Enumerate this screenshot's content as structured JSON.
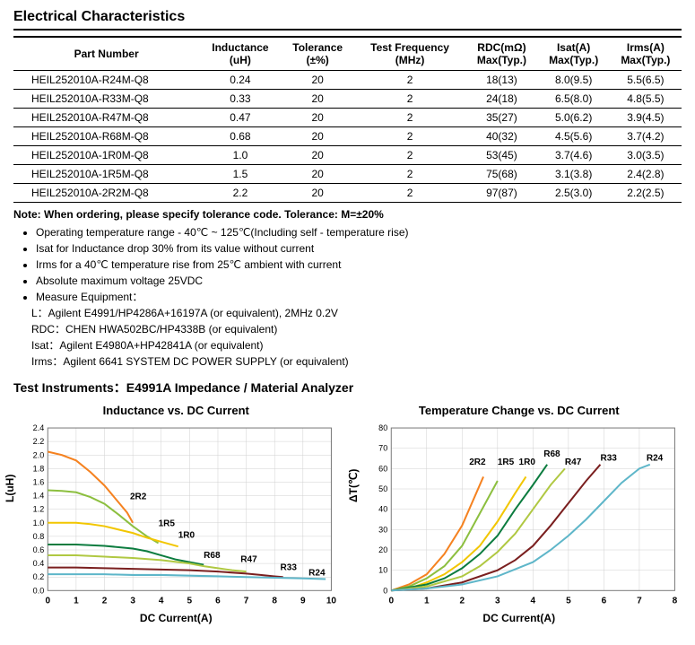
{
  "title": "Electrical Characteristics",
  "columns": [
    "Part Number",
    "Inductance (uH)",
    "Tolerance (±%)",
    "Test Frequency (MHz)",
    "RDC(mΩ) Max(Typ.)",
    "Isat(A) Max(Typ.)",
    "Irms(A) Max(Typ.)"
  ],
  "rows": [
    [
      "HEIL252010A-R24M-Q8",
      "0.24",
      "20",
      "2",
      "18(13)",
      "8.0(9.5)",
      "5.5(6.5)"
    ],
    [
      "HEIL252010A-R33M-Q8",
      "0.33",
      "20",
      "2",
      "24(18)",
      "6.5(8.0)",
      "4.8(5.5)"
    ],
    [
      "HEIL252010A-R47M-Q8",
      "0.47",
      "20",
      "2",
      "35(27)",
      "5.0(6.2)",
      "3.9(4.5)"
    ],
    [
      "HEIL252010A-R68M-Q8",
      "0.68",
      "20",
      "2",
      "40(32)",
      "4.5(5.6)",
      "3.7(4.2)"
    ],
    [
      "HEIL252010A-1R0M-Q8",
      "1.0",
      "20",
      "2",
      "53(45)",
      "3.7(4.6)",
      "3.0(3.5)"
    ],
    [
      "HEIL252010A-1R5M-Q8",
      "1.5",
      "20",
      "2",
      "75(68)",
      "3.1(3.8)",
      "2.4(2.8)"
    ],
    [
      "HEIL252010A-2R2M-Q8",
      "2.2",
      "20",
      "2",
      "97(87)",
      "2.5(3.0)",
      "2.2(2.5)"
    ]
  ],
  "note_line": "Note: When ordering, please specify tolerance code. Tolerance: M=±20%",
  "bullets": [
    "Operating temperature range - 40℃ ~ 125℃(Including self - temperature rise)",
    "Isat for Inductance drop 30% from its value without current",
    "Irms for a 40℃ temperature rise from 25℃ ambient with current",
    "Absolute maximum voltage 25VDC",
    "Measure Equipment："
  ],
  "equipment": [
    "L：Agilent E4991/HP4286A+16197A (or equivalent), 2MHz 0.2V",
    "RDC：CHEN HWA502BC/HP4338B (or equivalent)",
    "Isat：Agilent E4980A+HP42841A (or equivalent)",
    "Irms：Agilent 6641 SYSTEM DC POWER SUPPLY (or equivalent)"
  ],
  "subtitle": "Test Instruments：E4991A Impedance / Material Analyzer",
  "chart1": {
    "title": "Inductance vs. DC Current",
    "xlabel": "DC Current(A)",
    "ylabel": "L(uH)",
    "xlim": [
      0,
      10
    ],
    "ylim": [
      0,
      2.4
    ],
    "xtick_step": 1,
    "ytick_step": 0.2,
    "grid_color": "#d0d0d0",
    "axis_color": "#7a7a7a",
    "line_width": 2,
    "series": [
      {
        "label": "2R2",
        "color": "#f58220",
        "pts": [
          [
            0,
            2.05
          ],
          [
            0.5,
            2.0
          ],
          [
            1,
            1.92
          ],
          [
            1.5,
            1.75
          ],
          [
            2,
            1.55
          ],
          [
            2.5,
            1.3
          ],
          [
            2.8,
            1.15
          ],
          [
            3.0,
            1.0
          ]
        ],
        "lx": 2.9,
        "ly": 1.35
      },
      {
        "label": "1R5",
        "color": "#8cbf3f",
        "pts": [
          [
            0,
            1.48
          ],
          [
            0.5,
            1.47
          ],
          [
            1,
            1.45
          ],
          [
            1.5,
            1.38
          ],
          [
            2,
            1.28
          ],
          [
            2.5,
            1.12
          ],
          [
            3,
            0.95
          ],
          [
            3.5,
            0.8
          ],
          [
            3.9,
            0.7
          ]
        ],
        "lx": 3.9,
        "ly": 0.95
      },
      {
        "label": "1R0",
        "color": "#f2c600",
        "pts": [
          [
            0,
            1.0
          ],
          [
            0.5,
            1.0
          ],
          [
            1,
            1.0
          ],
          [
            1.5,
            0.98
          ],
          [
            2,
            0.95
          ],
          [
            2.5,
            0.9
          ],
          [
            3,
            0.85
          ],
          [
            3.5,
            0.78
          ],
          [
            4,
            0.72
          ],
          [
            4.6,
            0.65
          ]
        ],
        "lx": 4.6,
        "ly": 0.78
      },
      {
        "label": "R68",
        "color": "#0c7c3f",
        "pts": [
          [
            0,
            0.68
          ],
          [
            1,
            0.68
          ],
          [
            2,
            0.66
          ],
          [
            3,
            0.62
          ],
          [
            3.5,
            0.58
          ],
          [
            4,
            0.52
          ],
          [
            4.5,
            0.46
          ],
          [
            5,
            0.42
          ],
          [
            5.5,
            0.38
          ]
        ],
        "lx": 5.5,
        "ly": 0.48
      },
      {
        "label": "R47",
        "color": "#b0c842",
        "pts": [
          [
            0,
            0.52
          ],
          [
            1,
            0.52
          ],
          [
            2,
            0.5
          ],
          [
            3,
            0.48
          ],
          [
            4,
            0.45
          ],
          [
            5,
            0.4
          ],
          [
            5.5,
            0.36
          ],
          [
            6,
            0.33
          ],
          [
            6.5,
            0.3
          ],
          [
            7,
            0.28
          ]
        ],
        "lx": 6.8,
        "ly": 0.42
      },
      {
        "label": "R33",
        "color": "#7a1f1f",
        "pts": [
          [
            0,
            0.34
          ],
          [
            1,
            0.34
          ],
          [
            2,
            0.33
          ],
          [
            3,
            0.32
          ],
          [
            4,
            0.31
          ],
          [
            5,
            0.3
          ],
          [
            6,
            0.28
          ],
          [
            7,
            0.25
          ],
          [
            7.5,
            0.23
          ],
          [
            8,
            0.21
          ],
          [
            8.3,
            0.2
          ]
        ],
        "lx": 8.2,
        "ly": 0.3
      },
      {
        "label": "R24",
        "color": "#5eb6c9",
        "pts": [
          [
            0,
            0.24
          ],
          [
            1,
            0.24
          ],
          [
            2,
            0.24
          ],
          [
            3,
            0.23
          ],
          [
            4,
            0.23
          ],
          [
            5,
            0.22
          ],
          [
            6,
            0.21
          ],
          [
            7,
            0.2
          ],
          [
            8,
            0.19
          ],
          [
            9,
            0.18
          ],
          [
            9.8,
            0.17
          ]
        ],
        "lx": 9.2,
        "ly": 0.22
      }
    ]
  },
  "chart2": {
    "title": "Temperature Change vs. DC Current",
    "xlabel": "DC Current(A)",
    "ylabel": "ΔT(℃)",
    "xlim": [
      0,
      8
    ],
    "ylim": [
      0,
      80
    ],
    "xtick_step": 1,
    "ytick_step": 10,
    "grid_color": "#d0d0d0",
    "axis_color": "#7a7a7a",
    "line_width": 2,
    "series": [
      {
        "label": "2R2",
        "color": "#f58220",
        "pts": [
          [
            0,
            0
          ],
          [
            0.5,
            3
          ],
          [
            1,
            8
          ],
          [
            1.5,
            18
          ],
          [
            2,
            32
          ],
          [
            2.4,
            48
          ],
          [
            2.6,
            56
          ]
        ],
        "lx": 2.2,
        "ly": 62
      },
      {
        "label": "1R5",
        "color": "#8cbf3f",
        "pts": [
          [
            0,
            0
          ],
          [
            0.5,
            2
          ],
          [
            1,
            6
          ],
          [
            1.5,
            12
          ],
          [
            2,
            22
          ],
          [
            2.5,
            38
          ],
          [
            3,
            54
          ]
        ],
        "lx": 3.0,
        "ly": 62
      },
      {
        "label": "1R0",
        "color": "#f2c600",
        "pts": [
          [
            0,
            0
          ],
          [
            0.5,
            1
          ],
          [
            1,
            4
          ],
          [
            1.5,
            8
          ],
          [
            2,
            14
          ],
          [
            2.5,
            22
          ],
          [
            3,
            34
          ],
          [
            3.5,
            48
          ],
          [
            3.8,
            56
          ]
        ],
        "lx": 3.6,
        "ly": 62
      },
      {
        "label": "R68",
        "color": "#0c7c3f",
        "pts": [
          [
            0,
            0
          ],
          [
            1,
            3
          ],
          [
            1.5,
            6
          ],
          [
            2,
            11
          ],
          [
            2.5,
            18
          ],
          [
            3,
            27
          ],
          [
            3.5,
            40
          ],
          [
            4,
            52
          ],
          [
            4.4,
            62
          ]
        ],
        "lx": 4.3,
        "ly": 66
      },
      {
        "label": "R47",
        "color": "#b0c842",
        "pts": [
          [
            0,
            0
          ],
          [
            1,
            2
          ],
          [
            2,
            7
          ],
          [
            2.5,
            12
          ],
          [
            3,
            19
          ],
          [
            3.5,
            28
          ],
          [
            4,
            40
          ],
          [
            4.5,
            52
          ],
          [
            4.9,
            60
          ]
        ],
        "lx": 4.9,
        "ly": 62
      },
      {
        "label": "R33",
        "color": "#7a1f1f",
        "pts": [
          [
            0,
            0
          ],
          [
            1,
            1
          ],
          [
            2,
            4
          ],
          [
            3,
            10
          ],
          [
            3.5,
            15
          ],
          [
            4,
            22
          ],
          [
            4.5,
            32
          ],
          [
            5,
            43
          ],
          [
            5.5,
            54
          ],
          [
            5.9,
            62
          ]
        ],
        "lx": 5.9,
        "ly": 64
      },
      {
        "label": "R24",
        "color": "#5eb6c9",
        "pts": [
          [
            0,
            0
          ],
          [
            1,
            1
          ],
          [
            2,
            3
          ],
          [
            3,
            7
          ],
          [
            4,
            14
          ],
          [
            4.5,
            20
          ],
          [
            5,
            27
          ],
          [
            5.5,
            35
          ],
          [
            6,
            44
          ],
          [
            6.5,
            53
          ],
          [
            7,
            60
          ],
          [
            7.3,
            62
          ]
        ],
        "lx": 7.2,
        "ly": 64
      }
    ]
  }
}
